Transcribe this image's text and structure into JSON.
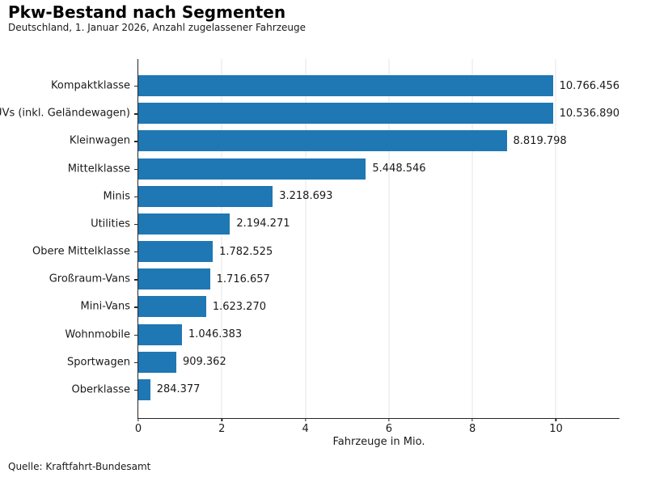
{
  "header": {
    "title": "Pkw-Bestand nach Segmenten",
    "subtitle": "Deutschland, 1. Januar 2026, Anzahl zugelassener Fahrzeuge"
  },
  "footer": {
    "source": "Quelle: Kraftfahrt-Bundesamt"
  },
  "chart_data": {
    "type": "bar",
    "orientation": "horizontal",
    "title": "Pkw-Bestand nach Segmenten",
    "subtitle": "Deutschland, 1. Januar 2026, Anzahl zugelassener Fahrzeuge",
    "xlabel": "Fahrzeuge in Mio.",
    "categories": [
      "Kompaktklasse",
      "SUVs (inkl. Geländewagen)",
      "Kleinwagen",
      "Mittelklasse",
      "Minis",
      "Utilities",
      "Obere Mittelklasse",
      "Großraum-Vans",
      "Mini-Vans",
      "Wohnmobile",
      "Sportwagen",
      "Oberklasse"
    ],
    "values": [
      10766456,
      10536890,
      8819798,
      5448546,
      3218693,
      2194271,
      1782525,
      1716657,
      1623270,
      1046383,
      909362,
      284377
    ],
    "value_labels": [
      "10.766.456",
      "10.536.890",
      "8.819.798",
      "5.448.546",
      "3.218.693",
      "2.194.271",
      "1.782.525",
      "1.716.657",
      "1.623.270",
      "1.046.383",
      "909.362",
      "284.377"
    ],
    "x_ticks": [
      0,
      2,
      4,
      6,
      8,
      10
    ],
    "xlim": [
      0,
      11.52
    ],
    "unit_divisor": 1000000,
    "bar_color": "#1f77b4",
    "grid": "vertical",
    "gridline_color": "#e4e4e4",
    "legend": "none",
    "source": "Quelle: Kraftfahrt-Bundesamt"
  }
}
